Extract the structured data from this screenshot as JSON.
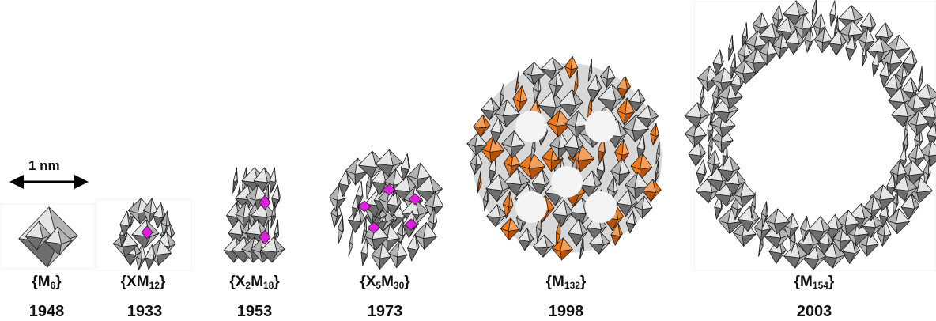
{
  "scale_bar": {
    "label": "1 nm"
  },
  "clusters": [
    {
      "id": "m6",
      "formula_pre": "{M",
      "sub1": "6",
      "formula_mid": "",
      "sub2": "",
      "formula_post": "}",
      "year": "1948"
    },
    {
      "id": "xm12",
      "formula_pre": "{XM",
      "sub1": "12",
      "formula_mid": "",
      "sub2": "",
      "formula_post": "}",
      "year": "1933"
    },
    {
      "id": "x2m18",
      "formula_pre": "{X",
      "sub1": "2",
      "formula_mid": "M",
      "sub2": "18",
      "formula_post": "}",
      "year": "1953"
    },
    {
      "id": "x5m30",
      "formula_pre": "{X",
      "sub1": "5",
      "formula_mid": "M",
      "sub2": "30",
      "formula_post": "}",
      "year": "1973"
    },
    {
      "id": "m132",
      "formula_pre": "{M",
      "sub1": "132",
      "formula_mid": "",
      "sub2": "",
      "formula_post": "}",
      "year": "1998"
    },
    {
      "id": "m154",
      "formula_pre": "{M",
      "sub1": "154",
      "formula_mid": "",
      "sub2": "",
      "formula_post": "}",
      "year": "2003"
    }
  ],
  "colors": {
    "polyhedron_light": "#e6e6e6",
    "polyhedron_mid": "#b4b4b4",
    "polyhedron_dark": "#6e6e6e",
    "edge": "#222222",
    "heteroatom": "#e020e0",
    "keplerate_accent": "#f07818"
  }
}
